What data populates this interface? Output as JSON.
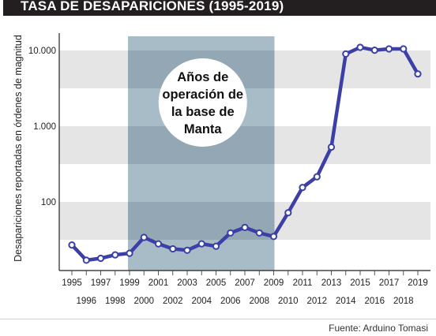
{
  "header": {
    "title": "TASA DE DESAPARICIONES (1995-2019)"
  },
  "source": "Fuente: Arduino Tomasi",
  "chart_data": {
    "type": "line",
    "title": "TASA DE DESAPARICIONES (1995-2019)",
    "xlabel": "",
    "ylabel": "Desapariciones reportadas en órdenes de magnitud",
    "y_scale": "log",
    "ylim": [
      10,
      15000
    ],
    "y_ticks": [
      {
        "value": 100,
        "label": "100"
      },
      {
        "value": 1000,
        "label": "1.000"
      },
      {
        "value": 10000,
        "label": "10.000"
      }
    ],
    "x": [
      1995,
      1996,
      1997,
      1998,
      1999,
      2000,
      2001,
      2002,
      2003,
      2004,
      2005,
      2006,
      2007,
      2008,
      2009,
      2010,
      2011,
      2012,
      2013,
      2014,
      2015,
      2016,
      2017,
      2018,
      2019
    ],
    "x_tick_labels_top": [
      "1995",
      "1997",
      "1999",
      "2001",
      "2003",
      "2005",
      "2007",
      "2009",
      "2011",
      "2013",
      "2015",
      "2017",
      "2019"
    ],
    "x_tick_labels_bottom": [
      "1996",
      "1998",
      "2000",
      "2002",
      "2004",
      "2006",
      "2008",
      "2010",
      "2012",
      "2014",
      "2016",
      "2018"
    ],
    "series": [
      {
        "values": [
          27,
          17,
          18,
          20,
          21,
          34,
          28,
          24,
          23,
          28,
          26,
          39,
          46,
          39,
          35,
          72,
          155,
          215,
          530,
          9000,
          11000,
          10100,
          10500,
          10500,
          4900
        ]
      }
    ],
    "highlight_range": [
      1999,
      2009
    ],
    "annotation": "Años de operación de la base de Manta",
    "annotation_lines": [
      "Años de",
      "operación de",
      "la base de",
      "Manta"
    ],
    "grid": "horizontal bands",
    "colors": {
      "line": "#3b3fa6",
      "marker_fill": "#ffffff",
      "band": "#e5e5e5",
      "highlight": "#a8bcc8",
      "highlight_band": "#93a8b4",
      "circle": "#ffffff",
      "title_bg": "#231f20"
    }
  }
}
